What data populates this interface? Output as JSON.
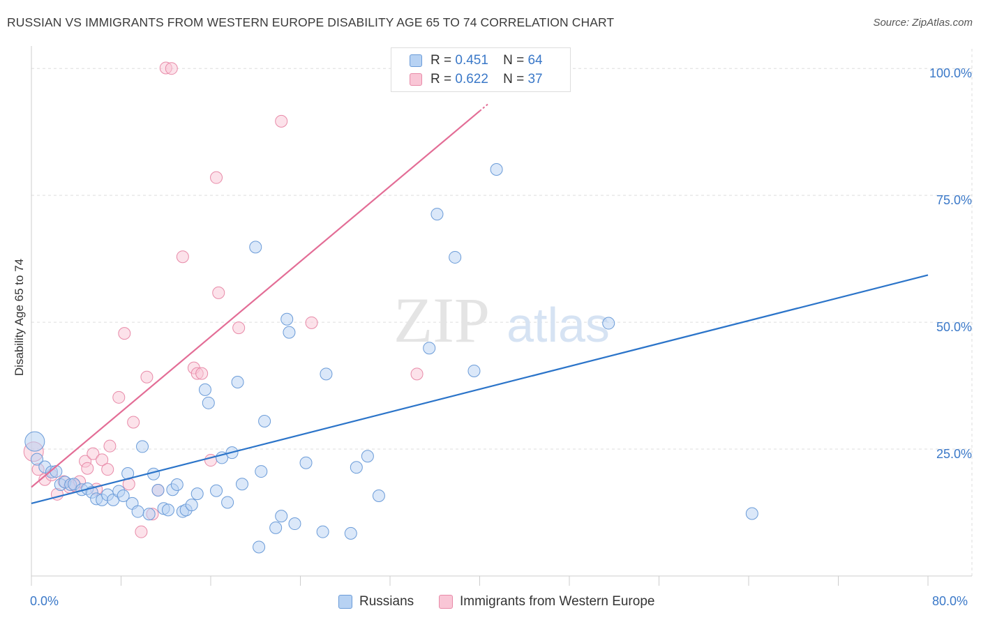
{
  "title": "RUSSIAN VS IMMIGRANTS FROM WESTERN EUROPE DISABILITY AGE 65 TO 74 CORRELATION CHART",
  "source_label": "Source: ZipAtlas.com",
  "watermark": {
    "zip": "ZIP",
    "atlas": "atlas"
  },
  "legend": {
    "rows": [
      {
        "r_label": "R =",
        "r_value": "0.451",
        "n_label": "N =",
        "n_value": "64"
      },
      {
        "r_label": "R =",
        "r_value": "0.622",
        "n_label": "N =",
        "n_value": "37"
      }
    ]
  },
  "colors": {
    "russians_fill": "#b7d2f3",
    "russians_stroke": "#6a9bd8",
    "russians_line": "#2b74c9",
    "immigrants_fill": "#f9c6d6",
    "immigrants_stroke": "#e88aa8",
    "immigrants_line": "#e36d96",
    "axis_text": "#3a78c8",
    "grid": "#dddddd"
  },
  "chart_data": {
    "type": "scatter",
    "title": "RUSSIAN VS IMMIGRANTS FROM WESTERN EUROPE DISABILITY AGE 65 TO 74 CORRELATION CHART",
    "xlabel": "",
    "ylabel": "Disability Age 65 to 74",
    "x_tick_labels": [
      "0.0%",
      "80.0%"
    ],
    "y_tick_labels": [
      "25.0%",
      "50.0%",
      "75.0%",
      "100.0%"
    ],
    "xlim": [
      0,
      80
    ],
    "ylim": [
      0,
      103
    ],
    "grid": true,
    "legend_position": "bottom",
    "series": [
      {
        "name": "Russians",
        "R": 0.451,
        "N": 64,
        "trend": {
          "x": [
            0,
            80
          ],
          "y": [
            14.3,
            59.3
          ]
        },
        "points": [
          [
            0.3,
            26.5
          ],
          [
            0.5,
            23
          ],
          [
            1.2,
            21.5
          ],
          [
            1.8,
            20.5
          ],
          [
            2.2,
            20.6
          ],
          [
            2.6,
            18
          ],
          [
            3,
            18.5
          ],
          [
            3.5,
            18
          ],
          [
            3.8,
            18.1
          ],
          [
            4.5,
            17
          ],
          [
            5,
            17.2
          ],
          [
            5.4,
            16.5
          ],
          [
            5.8,
            15.2
          ],
          [
            6.3,
            15
          ],
          [
            6.8,
            16
          ],
          [
            7.3,
            15
          ],
          [
            7.8,
            16.7
          ],
          [
            8.2,
            15.8
          ],
          [
            8.6,
            20.2
          ],
          [
            9,
            14.3
          ],
          [
            9.5,
            12.7
          ],
          [
            9.9,
            25.5
          ],
          [
            10.5,
            12.2
          ],
          [
            10.9,
            20.1
          ],
          [
            11.3,
            16.9
          ],
          [
            11.8,
            13.3
          ],
          [
            12.2,
            13
          ],
          [
            12.6,
            17
          ],
          [
            13,
            18
          ],
          [
            13.5,
            12.7
          ],
          [
            13.8,
            13
          ],
          [
            14.3,
            14
          ],
          [
            14.8,
            16.2
          ],
          [
            15.5,
            36.7
          ],
          [
            15.8,
            34.1
          ],
          [
            16.5,
            16.8
          ],
          [
            17,
            23.3
          ],
          [
            17.5,
            14.5
          ],
          [
            17.9,
            24.3
          ],
          [
            18.4,
            38.2
          ],
          [
            18.8,
            18.1
          ],
          [
            20,
            64.8
          ],
          [
            20.3,
            5.7
          ],
          [
            20.5,
            20.6
          ],
          [
            20.8,
            30.5
          ],
          [
            21.8,
            9.5
          ],
          [
            22.3,
            11.8
          ],
          [
            22.8,
            50.6
          ],
          [
            23,
            48
          ],
          [
            23.5,
            10.3
          ],
          [
            24.5,
            22.3
          ],
          [
            26,
            8.7
          ],
          [
            26.3,
            39.8
          ],
          [
            28.5,
            8.4
          ],
          [
            29,
            21.4
          ],
          [
            30,
            23.6
          ],
          [
            31,
            15.8
          ],
          [
            35.5,
            44.9
          ],
          [
            36.2,
            71.3
          ],
          [
            37.8,
            62.8
          ],
          [
            39.5,
            40.4
          ],
          [
            41.5,
            80.1
          ],
          [
            51.5,
            49.8
          ],
          [
            64.3,
            12.3
          ]
        ]
      },
      {
        "name": "Immigrants from Western Europe",
        "R": 0.622,
        "N": 37,
        "trend": {
          "x": [
            0,
            40.8
          ],
          "y": [
            17.5,
            93.1
          ]
        },
        "points": [
          [
            0.2,
            24.5
          ],
          [
            0.6,
            21
          ],
          [
            1.2,
            19
          ],
          [
            1.8,
            19.9
          ],
          [
            2.3,
            16.1
          ],
          [
            2.9,
            18.6
          ],
          [
            3.4,
            17.5
          ],
          [
            3.9,
            17.8
          ],
          [
            4.3,
            18.6
          ],
          [
            4.8,
            22.6
          ],
          [
            5,
            21.2
          ],
          [
            5.5,
            24.1
          ],
          [
            5.8,
            17.1
          ],
          [
            6.3,
            22.9
          ],
          [
            6.8,
            21
          ],
          [
            7,
            25.6
          ],
          [
            7.8,
            35.2
          ],
          [
            8.3,
            47.8
          ],
          [
            8.7,
            18.1
          ],
          [
            9.1,
            30.3
          ],
          [
            9.8,
            8.7
          ],
          [
            10.3,
            39.2
          ],
          [
            10.8,
            12.2
          ],
          [
            11.3,
            16.9
          ],
          [
            12,
            100.1
          ],
          [
            12.5,
            100
          ],
          [
            13.5,
            62.9
          ],
          [
            14.5,
            41
          ],
          [
            14.8,
            39.9
          ],
          [
            15.2,
            39.9
          ],
          [
            16,
            22.8
          ],
          [
            16.5,
            78.5
          ],
          [
            16.7,
            55.8
          ],
          [
            18.5,
            48.9
          ],
          [
            22.3,
            89.6
          ],
          [
            25,
            49.9
          ],
          [
            34.4,
            39.8
          ]
        ]
      }
    ]
  }
}
